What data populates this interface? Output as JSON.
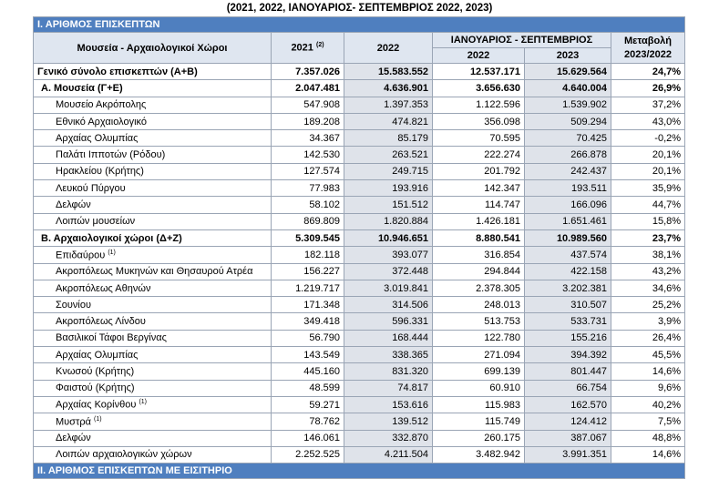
{
  "title": "(2021, 2022, ΙΑΝΟΥΑΡΙΟΣ- ΣΕΠΤΕΜΒΡΙΟΣ 2022, 2023)",
  "section": "Ι. ΑΡΙΘΜΟΣ ΕΠΙΣΚΕΠΤΩΝ",
  "header": {
    "label": "Μουσεία - Αρχαιολογικοί Χώροι",
    "y2021": "2021",
    "y2021_note": "(2)",
    "y2022": "2022",
    "period": "ΙΑΝΟΥΑΡΙΟΣ - ΣΕΠΤΕΜΒΡΙΟΣ",
    "p2022": "2022",
    "p2023": "2023",
    "change": "Μεταβολή 2023/2022"
  },
  "rows": [
    {
      "label": "Γενικό  σύνολο επισκεπτών (Α+Β)",
      "level": "total",
      "values": [
        "7.357.026",
        "15.583.552",
        "12.537.171",
        "15.629.564",
        "24,7%"
      ]
    },
    {
      "label": "Α. Μουσεία (Γ+Ε)",
      "level": "group",
      "values": [
        "2.047.481",
        "4.636.901",
        "3.656.630",
        "4.640.004",
        "26,9%"
      ]
    },
    {
      "label": "Μουσείο Ακρόπολης",
      "level": "item",
      "values": [
        "547.908",
        "1.397.353",
        "1.122.596",
        "1.539.902",
        "37,2%"
      ]
    },
    {
      "label": "Εθνικό Αρχαιολογικό",
      "level": "item",
      "values": [
        "189.208",
        "474.821",
        "356.098",
        "509.294",
        "43,0%"
      ]
    },
    {
      "label": "Αρχαίας Ολυμπίας",
      "level": "item",
      "values": [
        "34.367",
        "85.179",
        "70.595",
        "70.425",
        "-0,2%"
      ]
    },
    {
      "label": "Παλάτι Ιπποτών (Ρόδου)",
      "level": "item",
      "values": [
        "142.530",
        "263.521",
        "222.274",
        "266.878",
        "20,1%"
      ]
    },
    {
      "label": "Ηρακλείου (Κρήτης)",
      "level": "item",
      "values": [
        "127.574",
        "249.715",
        "201.792",
        "242.437",
        "20,1%"
      ]
    },
    {
      "label": "Λευκού Πύργου",
      "level": "item",
      "values": [
        "77.983",
        "193.916",
        "142.347",
        "193.511",
        "35,9%"
      ]
    },
    {
      "label": "Δελφών",
      "level": "item",
      "values": [
        "58.102",
        "151.512",
        "114.747",
        "166.096",
        "44,7%"
      ]
    },
    {
      "label": "Λοιπών μουσείων",
      "level": "item",
      "values": [
        "869.809",
        "1.820.884",
        "1.426.181",
        "1.651.461",
        "15,8%"
      ]
    },
    {
      "label": "Β. Αρχαιολογικοί χώροι (Δ+Ζ)",
      "level": "group",
      "values": [
        "5.309.545",
        "10.946.651",
        "8.880.541",
        "10.989.560",
        "23,7%"
      ]
    },
    {
      "label": "Επιδαύρου",
      "note": "(1)",
      "level": "item",
      "values": [
        "182.118",
        "393.077",
        "316.854",
        "437.574",
        "38,1%"
      ]
    },
    {
      "label": "Ακροπόλεως Μυκηνών και Θησαυρού Ατρέα",
      "level": "item",
      "values": [
        "156.227",
        "372.448",
        "294.844",
        "422.158",
        "43,2%"
      ]
    },
    {
      "label": "Ακροπόλεως Αθηνών",
      "level": "item",
      "values": [
        "1.219.717",
        "3.019.841",
        "2.378.305",
        "3.202.381",
        "34,6%"
      ]
    },
    {
      "label": "Σουνίου",
      "level": "item",
      "values": [
        "171.348",
        "314.506",
        "248.013",
        "310.507",
        "25,2%"
      ]
    },
    {
      "label": "Ακροπόλεως Λίνδου",
      "level": "item",
      "values": [
        "349.418",
        "596.331",
        "513.753",
        "533.731",
        "3,9%"
      ]
    },
    {
      "label": "Βασιλικοί Τάφοι Βεργίνας",
      "level": "item",
      "values": [
        "56.790",
        "168.444",
        "122.780",
        "155.216",
        "26,4%"
      ]
    },
    {
      "label": "Αρχαίας Ολυμπίας",
      "level": "item",
      "values": [
        "143.549",
        "338.365",
        "271.094",
        "394.392",
        "45,5%"
      ]
    },
    {
      "label": "Κνωσού (Κρήτης)",
      "level": "item",
      "values": [
        "445.160",
        "831.320",
        "699.139",
        "801.447",
        "14,6%"
      ]
    },
    {
      "label": "Φαιστού (Κρήτης)",
      "level": "item",
      "values": [
        "48.599",
        "74.817",
        "60.910",
        "66.754",
        "9,6%"
      ]
    },
    {
      "label": "Αρχαίας Κορίνθου",
      "note": "(1)",
      "level": "item",
      "values": [
        "59.271",
        "153.616",
        "115.983",
        "162.570",
        "40,2%"
      ]
    },
    {
      "label": "Μυστρά",
      "note": "(1)",
      "level": "item",
      "values": [
        "78.762",
        "139.512",
        "115.749",
        "124.412",
        "7,5%"
      ]
    },
    {
      "label": "Δελφών",
      "level": "item",
      "values": [
        "146.061",
        "332.870",
        "260.175",
        "387.067",
        "48,8%"
      ]
    },
    {
      "label": "Λοιπών αρχαιολογικών χώρων",
      "level": "item",
      "values": [
        "2.252.525",
        "4.211.504",
        "3.482.942",
        "3.991.351",
        "14,6%"
      ]
    }
  ],
  "next_section": "ΙΙ. ΑΡΙΘΜΟΣ ΕΠΙΣΚΕΠΤΩΝ ΜΕ ΕΙΣΙΤΗΡΙΟ"
}
